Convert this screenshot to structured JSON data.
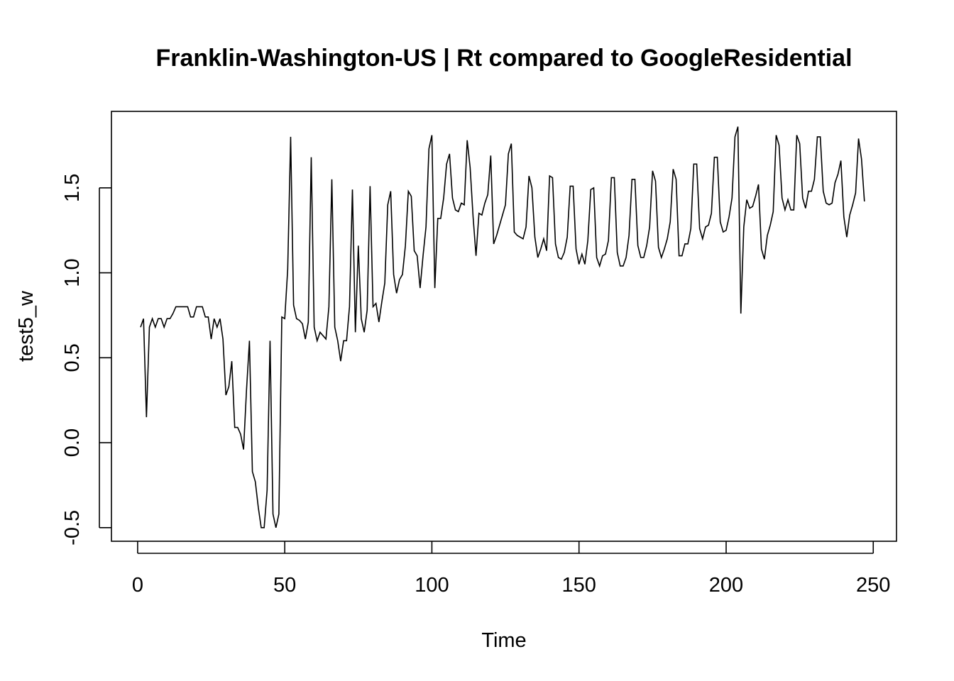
{
  "chart_data": {
    "type": "line",
    "title": "Franklin-Washington-US | Rt compared to GoogleResidential",
    "xlabel": "Time",
    "ylabel": "test5_w",
    "xlim": [
      -8.9,
      257.9
    ],
    "ylim": [
      -0.58,
      1.95
    ],
    "xticks": [
      0,
      50,
      100,
      150,
      200,
      250
    ],
    "yticks": [
      -0.5,
      0.0,
      0.5,
      1.0,
      1.5
    ],
    "xtick_labels": [
      "0",
      "50",
      "100",
      "150",
      "200",
      "250"
    ],
    "ytick_labels": [
      "-0.5",
      "0.0",
      "0.5",
      "1.0",
      "1.5"
    ],
    "grid": false,
    "legend": "none",
    "line_color": "#000000",
    "series": [
      {
        "values": [
          0.68,
          0.73,
          0.15,
          0.68,
          0.73,
          0.68,
          0.73,
          0.73,
          0.68,
          0.73,
          0.73,
          0.76,
          0.8,
          0.8,
          0.8,
          0.8,
          0.8,
          0.74,
          0.74,
          0.8,
          0.8,
          0.8,
          0.74,
          0.74,
          0.61,
          0.73,
          0.68,
          0.73,
          0.61,
          0.28,
          0.33,
          0.48,
          0.09,
          0.09,
          0.05,
          -0.04,
          0.31,
          0.6,
          -0.17,
          -0.23,
          -0.38,
          -0.5,
          -0.5,
          -0.28,
          0.6,
          -0.42,
          -0.5,
          -0.42,
          0.74,
          0.73,
          1.02,
          1.8,
          0.81,
          0.73,
          0.72,
          0.7,
          0.61,
          0.71,
          1.68,
          0.68,
          0.6,
          0.65,
          0.63,
          0.61,
          0.8,
          1.55,
          0.68,
          0.6,
          0.48,
          0.6,
          0.6,
          0.8,
          1.49,
          0.65,
          1.16,
          0.73,
          0.65,
          0.78,
          1.51,
          0.8,
          0.82,
          0.71,
          0.83,
          0.94,
          1.4,
          1.48,
          0.99,
          0.88,
          0.96,
          0.99,
          1.16,
          1.48,
          1.45,
          1.13,
          1.1,
          0.91,
          1.1,
          1.27,
          1.73,
          1.81,
          0.91,
          1.32,
          1.32,
          1.44,
          1.64,
          1.7,
          1.44,
          1.37,
          1.36,
          1.41,
          1.4,
          1.78,
          1.62,
          1.33,
          1.1,
          1.35,
          1.34,
          1.41,
          1.46,
          1.69,
          1.17,
          1.22,
          1.28,
          1.34,
          1.4,
          1.7,
          1.76,
          1.24,
          1.22,
          1.21,
          1.2,
          1.27,
          1.57,
          1.5,
          1.21,
          1.09,
          1.14,
          1.2,
          1.13,
          1.57,
          1.56,
          1.17,
          1.09,
          1.08,
          1.12,
          1.21,
          1.51,
          1.51,
          1.14,
          1.05,
          1.11,
          1.05,
          1.19,
          1.49,
          1.5,
          1.09,
          1.04,
          1.1,
          1.11,
          1.19,
          1.56,
          1.56,
          1.12,
          1.04,
          1.04,
          1.09,
          1.22,
          1.55,
          1.55,
          1.16,
          1.09,
          1.09,
          1.16,
          1.27,
          1.6,
          1.54,
          1.15,
          1.09,
          1.14,
          1.2,
          1.3,
          1.61,
          1.55,
          1.1,
          1.1,
          1.17,
          1.17,
          1.26,
          1.64,
          1.64,
          1.26,
          1.2,
          1.27,
          1.28,
          1.35,
          1.68,
          1.68,
          1.3,
          1.24,
          1.25,
          1.33,
          1.44,
          1.8,
          1.86,
          0.76,
          1.27,
          1.43,
          1.38,
          1.39,
          1.45,
          1.52,
          1.14,
          1.08,
          1.22,
          1.28,
          1.36,
          1.81,
          1.75,
          1.44,
          1.37,
          1.43,
          1.37,
          1.37,
          1.81,
          1.76,
          1.44,
          1.38,
          1.48,
          1.48,
          1.55,
          1.8,
          1.8,
          1.48,
          1.41,
          1.4,
          1.41,
          1.53,
          1.58,
          1.66,
          1.33,
          1.21,
          1.34,
          1.4,
          1.47,
          1.79,
          1.67,
          1.42
        ]
      }
    ]
  }
}
